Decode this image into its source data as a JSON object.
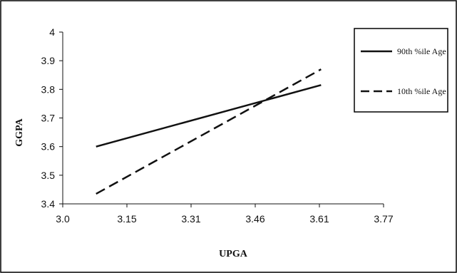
{
  "chart_data": {
    "type": "line",
    "title": "",
    "xlabel": "UPGA",
    "ylabel": "GGPA",
    "xlim": [
      3.0,
      3.77
    ],
    "ylim": [
      3.4,
      4.0
    ],
    "x_ticks": [
      "3.0",
      "3.15",
      "3.31",
      "3.46",
      "3.61",
      "3.77"
    ],
    "y_ticks": [
      "3.4",
      "3.5",
      "3.6",
      "3.7",
      "3.8",
      "3.9",
      "4"
    ],
    "grid": false,
    "legend_position": "right",
    "series": [
      {
        "name": "90th %ile Age",
        "style": "solid",
        "color": "#111111",
        "x": [
          3.08,
          3.62
        ],
        "y": [
          3.6,
          3.815
        ]
      },
      {
        "name": "10th %ile Age",
        "style": "dashed",
        "color": "#111111",
        "x": [
          3.08,
          3.62
        ],
        "y": [
          3.435,
          3.87
        ]
      }
    ]
  }
}
